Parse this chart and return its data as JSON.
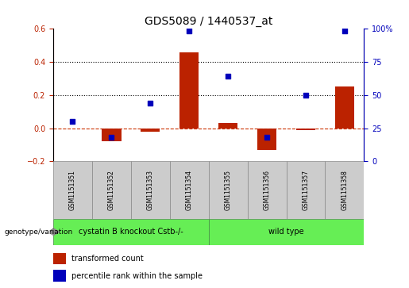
{
  "title": "GDS5089 / 1440537_at",
  "samples": [
    "GSM1151351",
    "GSM1151352",
    "GSM1151353",
    "GSM1151354",
    "GSM1151355",
    "GSM1151356",
    "GSM1151357",
    "GSM1151358"
  ],
  "transformed_count": [
    0.0,
    -0.08,
    -0.02,
    0.46,
    0.03,
    -0.13,
    -0.01,
    0.25
  ],
  "percentile_rank": [
    30,
    18,
    44,
    98.5,
    64,
    18,
    50,
    98.5
  ],
  "group_boundary": 4,
  "ylim_left": [
    -0.2,
    0.6
  ],
  "ylim_right": [
    0,
    100
  ],
  "yticks_left": [
    -0.2,
    0.0,
    0.2,
    0.4,
    0.6
  ],
  "yticks_right": [
    0,
    25,
    50,
    75,
    100
  ],
  "bar_color": "#bb2200",
  "dot_color": "#0000bb",
  "hline_color": "#cc3300",
  "dotted_line_color": "#000000",
  "bar_width": 0.5,
  "dot_size": 25,
  "legend_bar_label": "transformed count",
  "legend_dot_label": "percentile rank within the sample",
  "group_row_label": "genotype/variation",
  "group1_label": "cystatin B knockout Cstb-/-",
  "group2_label": "wild type",
  "group_color": "#66ee55",
  "background_color": "#ffffff",
  "sample_bg": "#cccccc",
  "title_fontsize": 10,
  "tick_fontsize": 7,
  "sample_fontsize": 5.5,
  "group_fontsize": 7,
  "legend_fontsize": 7
}
